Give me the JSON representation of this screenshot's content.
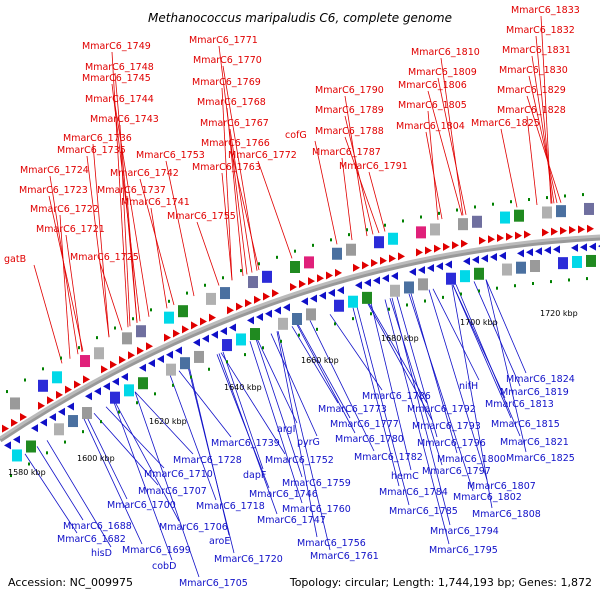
{
  "title": "Methanococcus maripaludis C6, complete genome",
  "accession": "Accession: NC_009975",
  "summary": "Topology: circular; Length: 1,744,193 bp; Genes: 1,872",
  "colors": {
    "forward": "#e00000",
    "reverse": "#1010c8",
    "backbone": "#888888",
    "tick": "#008000"
  },
  "ticks": [
    "1580 kbp",
    "1600 kbp",
    "1620 kbp",
    "1640 kbp",
    "1660 kbp",
    "1680 kbp",
    "1700 kbp",
    "1720 kbp"
  ],
  "top_labels": [
    "MmarC6_1833",
    "MmarC6_1832",
    "MmarC6_1831",
    "MmarC6_1830",
    "MmarC6_1829",
    "MmarC6_1828",
    "MmarC6_1825",
    "MmarC6_1810",
    "MmarC6_1809",
    "MmarC6_1806",
    "MmarC6_1805",
    "MmarC6_1804",
    "MmarC6_1790",
    "MmarC6_1789",
    "MmarC6_1788",
    "MmarC6_1787",
    "MmarC6_1791",
    "cofG",
    "MmarC6_1771",
    "MmarC6_1770",
    "MmarC6_1769",
    "MmarC6_1768",
    "MmarC6_1767",
    "MmarC6_1766",
    "MmarC6_1772",
    "MmarC6_1763",
    "MmarC6_1749",
    "MmarC6_1748",
    "MmarC6_1745",
    "MmarC6_1744",
    "MmarC6_1743",
    "MmarC6_1736",
    "MmarC6_1735",
    "MmarC6_1753",
    "MmarC6_1742",
    "MmarC6_1737",
    "MmarC6_1741",
    "MmarC6_1755",
    "MmarC6_1724",
    "MmarC6_1723",
    "MmarC6_1722",
    "MmarC6_1721",
    "MmarC6_1725",
    "gatB"
  ],
  "bottom_labels": [
    "MmarC6_1824",
    "MmarC6_1819",
    "MmarC6_1813",
    "MmarC6_1815",
    "MmarC6_1821",
    "MmarC6_1825",
    "nifH",
    "MmarC6_1786",
    "MmarC6_1792",
    "MmarC6_1793",
    "MmarC6_1796",
    "MmarC6_1800",
    "MmarC6_1797",
    "MmarC6_1807",
    "MmarC6_1802",
    "MmarC6_1808",
    "MmarC6_1773",
    "MmarC6_1777",
    "MmarC6_1780",
    "MmarC6_1782",
    "hemC",
    "MmarC6_1784",
    "MmarC6_1785",
    "MmarC6_1794",
    "MmarC6_1795",
    "argI",
    "pyrG",
    "MmarC6_1739",
    "MmarC6_1728",
    "MmarC6_1752",
    "dapF",
    "MmarC6_1759",
    "MmarC6_1746",
    "MmarC6_1710",
    "MmarC6_1707",
    "MmarC6_1700",
    "MmarC6_1718",
    "MmarC6_1760",
    "MmarC6_1747",
    "MmarC6_1706",
    "aroE",
    "MmarC6_1688",
    "MmarC6_1682",
    "MmarC6_1699",
    "hisD",
    "MmarC6_1756",
    "MmarC6_1720",
    "MmarC6_1761",
    "cobD",
    "MmarC6_1705"
  ]
}
